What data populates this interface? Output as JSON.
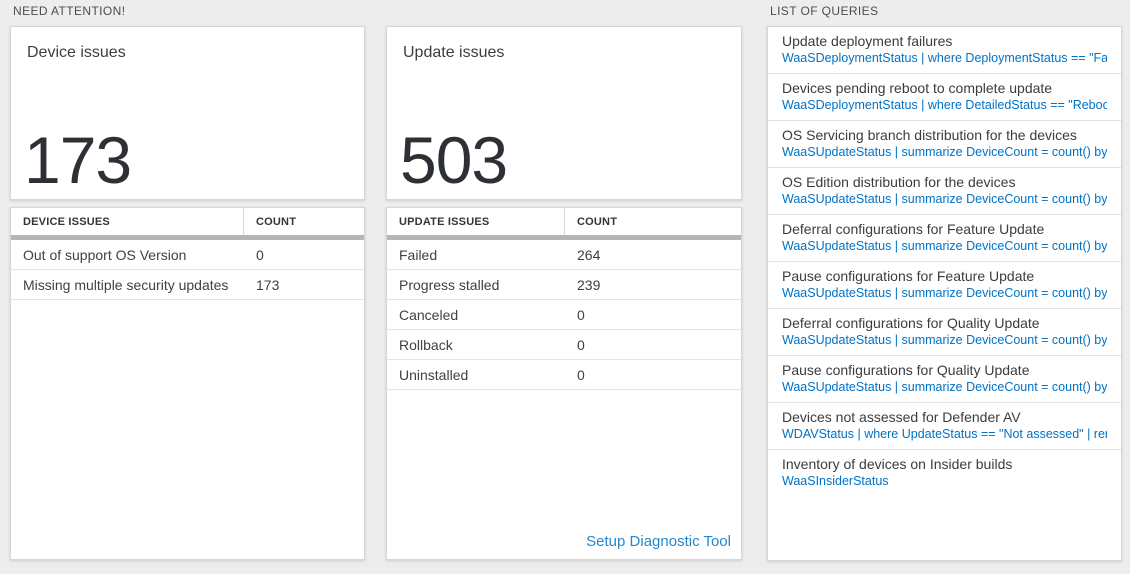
{
  "need_attention": {
    "label": "NEED ATTENTION!",
    "device": {
      "title": "Device issues",
      "value": "173",
      "table": {
        "col1_header": "DEVICE ISSUES",
        "col2_header": "COUNT",
        "rows": [
          {
            "label": "Out of support OS Version",
            "count": "0"
          },
          {
            "label": "Missing multiple security updates",
            "count": "173"
          }
        ]
      }
    },
    "update": {
      "title": "Update issues",
      "value": "503",
      "table": {
        "col1_header": "UPDATE ISSUES",
        "col2_header": "COUNT",
        "rows": [
          {
            "label": "Failed",
            "count": "264"
          },
          {
            "label": "Progress stalled",
            "count": "239"
          },
          {
            "label": "Canceled",
            "count": "0"
          },
          {
            "label": "Rollback",
            "count": "0"
          },
          {
            "label": "Uninstalled",
            "count": "0"
          }
        ],
        "link_label": "Setup Diagnostic Tool"
      }
    }
  },
  "queries": {
    "label": "LIST OF QUERIES",
    "items": [
      {
        "title": "Update deployment failures",
        "query": "WaaSDeploymentStatus | where DeploymentStatus == \"Failed\" |..."
      },
      {
        "title": "Devices pending reboot to complete update",
        "query": "WaaSDeploymentStatus | where DetailedStatus == \"Reboot pend..."
      },
      {
        "title": "OS Servicing branch distribution for the devices",
        "query": "WaaSUpdateStatus | summarize DeviceCount = count() by OSSer..."
      },
      {
        "title": "OS Edition distribution for the devices",
        "query": "WaaSUpdateStatus | summarize DeviceCount = count() by OSEdit..."
      },
      {
        "title": "Deferral configurations for Feature Update",
        "query": "WaaSUpdateStatus | summarize DeviceCount = count() by Featur..."
      },
      {
        "title": "Pause configurations for Feature Update",
        "query": "WaaSUpdateStatus | summarize DeviceCount = count() by Featur..."
      },
      {
        "title": "Deferral configurations for Quality Update",
        "query": "WaaSUpdateStatus | summarize DeviceCount = count() by Qualit..."
      },
      {
        "title": "Pause configurations for Quality Update",
        "query": "WaaSUpdateStatus | summarize DeviceCount = count() by Qualit..."
      },
      {
        "title": "Devices not assessed for Defender AV",
        "query": "WDAVStatus | where UpdateStatus == \"Not assessed\" | render ta..."
      },
      {
        "title": "Inventory of devices on Insider builds",
        "query": "WaaSInsiderStatus"
      }
    ]
  },
  "colors": {
    "background": "#ededed",
    "card_border": "#d6d6d6",
    "header_bar": "#b3b6b8",
    "query_blue": "#0072c6",
    "link_blue": "#2787cd",
    "big_number": "#2d3136"
  }
}
